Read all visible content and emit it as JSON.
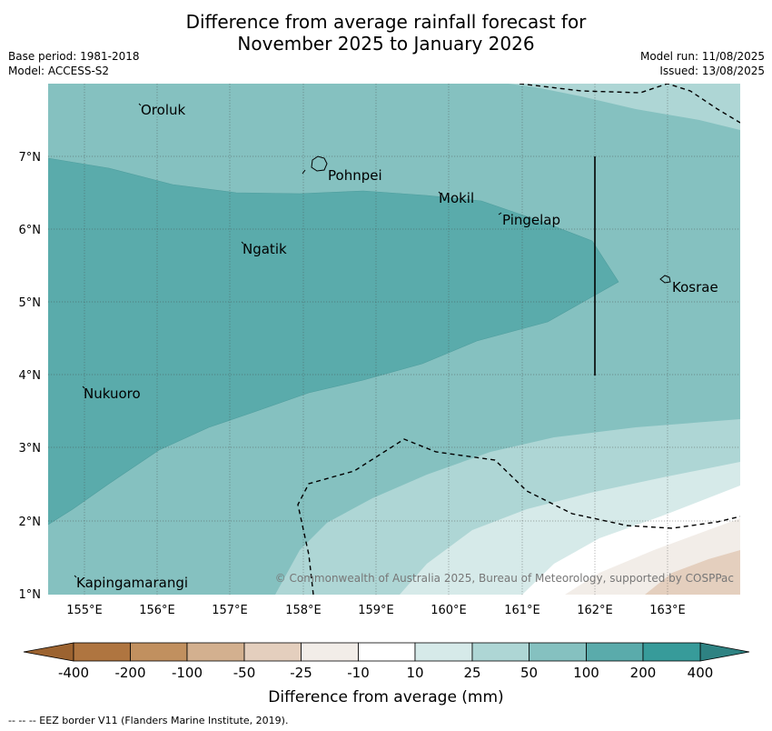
{
  "header": {
    "title_line1": "Difference from average rainfall forecast for",
    "title_line2": "November 2025 to January 2026",
    "base_period": "Base period: 1981-2018",
    "model": "Model: ACCESS-S2",
    "model_run": "Model run: 11/08/2025",
    "issued": "Issued: 13/08/2025"
  },
  "map": {
    "lon_ticks": [
      "155°E",
      "156°E",
      "157°E",
      "158°E",
      "159°E",
      "160°E",
      "161°E",
      "162°E",
      "163°E"
    ],
    "lat_ticks": [
      "7°N",
      "6°N",
      "5°N",
      "4°N",
      "3°N",
      "2°N",
      "1°N"
    ],
    "places": [
      {
        "name": "Oroluk"
      },
      {
        "name": "Pohnpei"
      },
      {
        "name": "Mokil"
      },
      {
        "name": "Pingelap"
      },
      {
        "name": "Ngatik"
      },
      {
        "name": "Kosrae"
      },
      {
        "name": "Nukuoro"
      },
      {
        "name": "Kapingamarangi"
      }
    ],
    "copyright": "© Commonwealth of Australia 2025, Bureau of Meteorology, supported by COSPPac",
    "colors": {
      "band_100_200": "#5aabab",
      "band_50_100": "#85c1c0",
      "band_25_50": "#aed6d5",
      "band_10_25": "#d6eae9",
      "band_m10_10": "#ffffff",
      "band_m25_m10": "#f2ede8",
      "band_m50_m25": "#e4cfbe"
    }
  },
  "colorbar": {
    "labels": [
      "-400",
      "-200",
      "-100",
      "-50",
      "-25",
      "-10",
      "10",
      "25",
      "50",
      "100",
      "200",
      "400"
    ],
    "colors": [
      "#af7540",
      "#c1905f",
      "#d3b08f",
      "#e4cfbe",
      "#f2ede8",
      "#ffffff",
      "#d6eae9",
      "#aed6d5",
      "#85c1c0",
      "#5aabab",
      "#379b9a"
    ],
    "under_color": "#9c6330",
    "over_color": "#2e8282",
    "title": "Difference from average (mm)"
  },
  "footer": {
    "legend": "--  --  -- EEZ border V11 (Flanders Marine Institute, 2019)."
  }
}
